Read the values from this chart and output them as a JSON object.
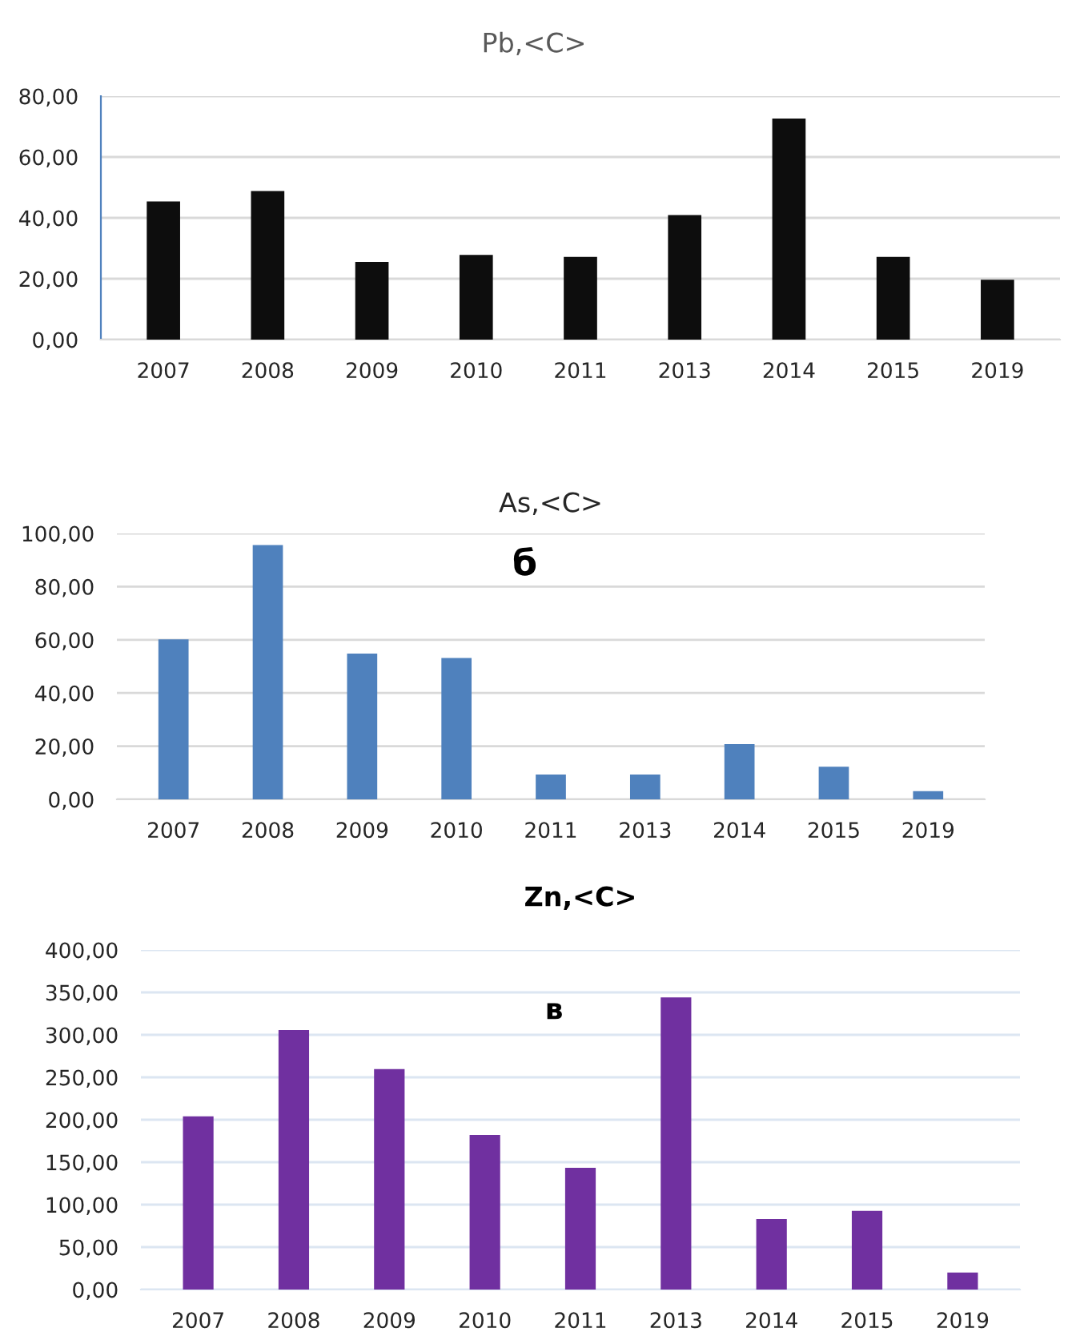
{
  "chart_data": [
    {
      "type": "bar",
      "title": "Pb,<C>",
      "categories": [
        "2007",
        "2008",
        "2009",
        "2010",
        "2011",
        "2013",
        "2014",
        "2015",
        "2019"
      ],
      "values": [
        45.4,
        48.8,
        25.5,
        27.8,
        27.2,
        40.9,
        72.6,
        27.2,
        19.7
      ],
      "color": "#0d0d0d",
      "ylim": [
        0,
        80
      ],
      "yticks": [
        {
          "value": 0,
          "label": "0,00"
        },
        {
          "value": 20,
          "label": "20,00"
        },
        {
          "value": 40,
          "label": "40,00"
        },
        {
          "value": 60,
          "label": "60,00"
        },
        {
          "value": 80,
          "label": "80,00"
        }
      ],
      "grid": "y"
    },
    {
      "type": "bar",
      "title": "As,<C>",
      "annotations": [
        "б"
      ],
      "categories": [
        "2007",
        "2008",
        "2009",
        "2010",
        "2011",
        "2013",
        "2014",
        "2015",
        "2019"
      ],
      "values": [
        60.2,
        95.6,
        54.8,
        53.2,
        9.3,
        9.3,
        20.8,
        12.3,
        3.1
      ],
      "color": "#4f81bd",
      "ylim": [
        0,
        100
      ],
      "yticks": [
        {
          "value": 0,
          "label": "0,00"
        },
        {
          "value": 20,
          "label": "20,00"
        },
        {
          "value": 40,
          "label": "40,00"
        },
        {
          "value": 60,
          "label": "60,00"
        },
        {
          "value": 80,
          "label": "80,00"
        },
        {
          "value": 100,
          "label": "100,00"
        }
      ],
      "grid": "y"
    },
    {
      "type": "bar",
      "title": "Zn,<C>",
      "annotations": [
        "в"
      ],
      "categories": [
        "2007",
        "2008",
        "2009",
        "2010",
        "2011",
        "2013",
        "2014",
        "2015",
        "2019"
      ],
      "values": [
        204,
        305.6,
        259.7,
        182,
        143.5,
        344,
        83,
        92.7,
        20
      ],
      "color": "#7030a0",
      "ylim": [
        0,
        400
      ],
      "yticks": [
        {
          "value": 0,
          "label": "0,00"
        },
        {
          "value": 50,
          "label": "50,00"
        },
        {
          "value": 100,
          "label": "100,00"
        },
        {
          "value": 150,
          "label": "150,00"
        },
        {
          "value": 200,
          "label": "200,00"
        },
        {
          "value": 250,
          "label": "250,00"
        },
        {
          "value": 300,
          "label": "300,00"
        },
        {
          "value": 350,
          "label": "350,00"
        },
        {
          "value": 400,
          "label": "400,00"
        }
      ],
      "grid": "y"
    }
  ]
}
